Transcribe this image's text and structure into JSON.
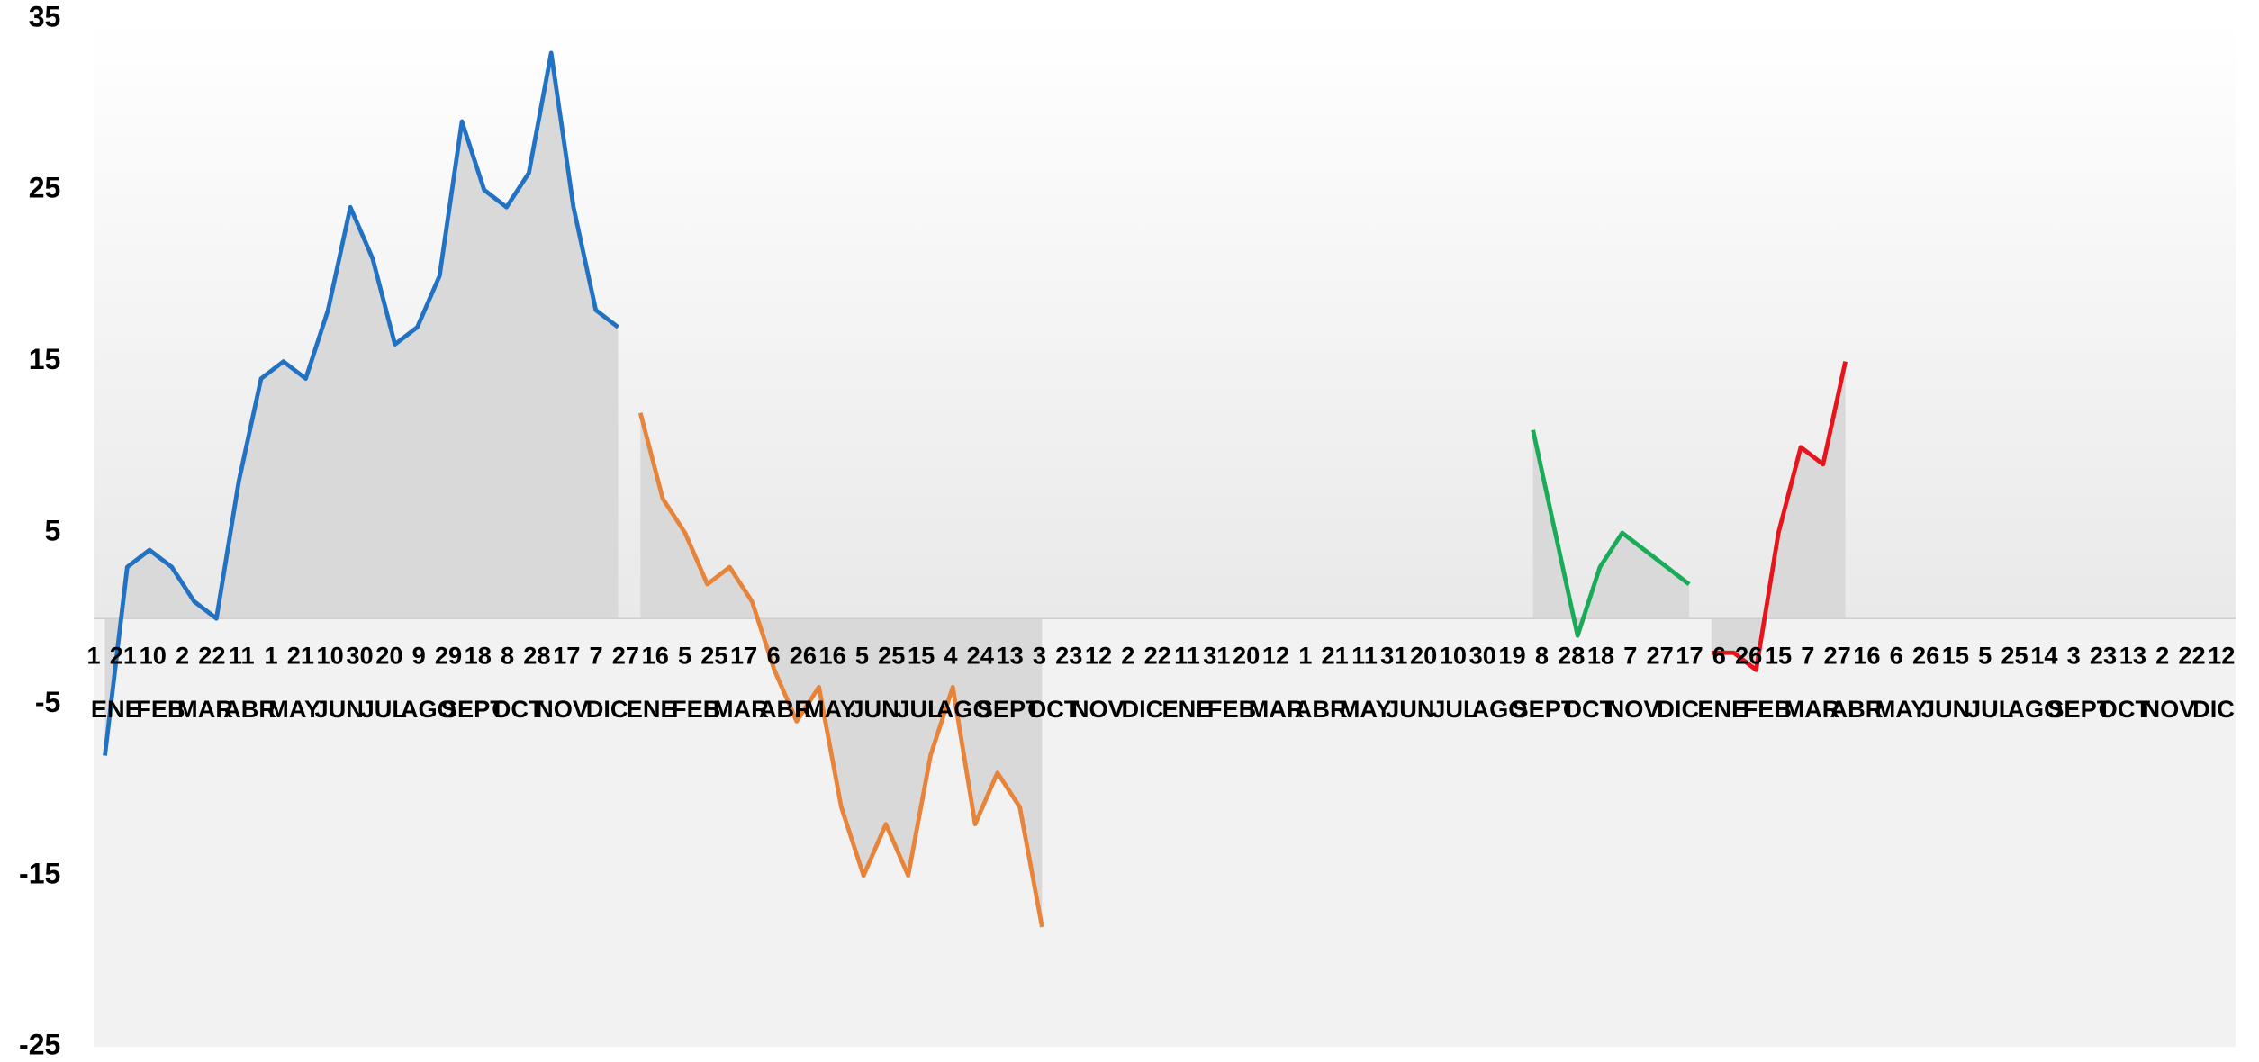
{
  "chart_data": {
    "type": "line",
    "categories": [
      "ENE",
      null,
      "FEB",
      null,
      "MAR",
      null,
      "ABR",
      null,
      "MAY",
      null,
      "JUN",
      null,
      "JUL",
      null,
      "AGO",
      null,
      "SEPT",
      null,
      "OCT",
      null,
      "NOV",
      null,
      "DIC",
      null,
      "ENE",
      null,
      "FEB",
      null,
      "MAR",
      null,
      "ABR",
      null,
      "MAY",
      null,
      "JUN",
      null,
      "JUL",
      null,
      "AGO",
      null,
      "SEPT",
      null,
      "OCT",
      null,
      "NOV",
      null,
      "DIC",
      null,
      "ENE",
      null,
      "FEB",
      null,
      "MAR",
      null,
      "ABR",
      null,
      "MAY",
      null,
      "JUN",
      null,
      "JUL",
      null,
      "AGO",
      null,
      "SEPT",
      null,
      "OCT",
      null,
      "NOV",
      null,
      "DIC",
      null,
      "ENE",
      null,
      "FEB",
      null,
      "MAR",
      null,
      "ABR",
      null,
      "MAY",
      null,
      "JUN",
      null,
      "JUL",
      null,
      "AGO",
      null,
      "SEPT",
      null,
      "OCT",
      null,
      "NOV",
      null,
      "DIC",
      null
    ],
    "day_labels": [
      "1",
      "21",
      "10",
      "2",
      "22",
      "11",
      "1",
      "21",
      "10",
      "30",
      "20",
      "9",
      "29",
      "18",
      "8",
      "28",
      "17",
      "7",
      "27",
      "16",
      "5",
      "25",
      "17",
      "6",
      "26",
      "16",
      "5",
      "25",
      "15",
      "4",
      "24",
      "13",
      "3",
      "23",
      "12",
      "2",
      "22",
      "11",
      "31",
      "20",
      "12",
      "1",
      "21",
      "11",
      "31",
      "20",
      "10",
      "30",
      "19",
      "8",
      "28",
      "18",
      "7",
      "27",
      "17",
      "6",
      "26",
      "15",
      "7",
      "27",
      "16",
      "6",
      "26",
      "15",
      "5",
      "25",
      "14",
      "3",
      "23",
      "13",
      "2",
      "22",
      "12"
    ],
    "series": [
      {
        "color": "#2272c3",
        "values": [
          -8,
          3,
          4,
          3,
          1,
          0,
          8,
          14,
          15,
          14,
          18,
          24,
          21,
          16,
          17,
          20,
          29,
          25,
          24,
          26,
          33,
          24,
          18,
          17,
          null,
          null,
          null,
          null,
          null,
          null,
          null,
          null,
          null,
          null,
          null,
          null,
          null,
          null,
          null,
          null,
          null,
          null,
          null,
          null,
          null,
          null,
          null,
          null,
          null,
          null,
          null,
          null,
          null,
          null,
          null,
          null,
          null,
          null,
          null,
          null,
          null,
          null,
          null,
          null,
          null,
          null,
          null,
          null,
          null,
          null,
          null,
          null,
          null,
          null,
          null,
          null,
          null,
          null,
          null,
          null,
          null,
          null,
          null,
          null,
          null,
          null,
          null,
          null,
          null,
          null,
          null,
          null,
          null,
          null,
          null,
          null
        ]
      },
      {
        "color": "#e8833a",
        "values": [
          null,
          null,
          null,
          null,
          null,
          null,
          null,
          null,
          null,
          null,
          null,
          null,
          null,
          null,
          null,
          null,
          null,
          null,
          null,
          null,
          null,
          null,
          null,
          null,
          12,
          7,
          5,
          2,
          3,
          1,
          -3,
          -6,
          -4,
          -11,
          -15,
          -12,
          -15,
          -8,
          -4,
          -12,
          -9,
          -11,
          -18,
          null,
          null,
          null,
          null,
          null,
          null,
          null,
          null,
          null,
          null,
          null,
          null,
          null,
          null,
          null,
          null,
          null,
          null,
          null,
          null,
          null,
          null,
          null,
          null,
          null,
          null,
          null,
          null,
          null,
          null,
          null,
          null,
          null,
          null,
          null,
          null,
          null,
          null,
          null,
          null,
          null,
          null,
          null,
          null,
          null,
          null,
          null,
          null,
          null,
          null,
          null,
          null,
          null
        ]
      },
      {
        "color": "#1aab58",
        "values": [
          null,
          null,
          null,
          null,
          null,
          null,
          null,
          null,
          null,
          null,
          null,
          null,
          null,
          null,
          null,
          null,
          null,
          null,
          null,
          null,
          null,
          null,
          null,
          null,
          null,
          null,
          null,
          null,
          null,
          null,
          null,
          null,
          null,
          null,
          null,
          null,
          null,
          null,
          null,
          null,
          null,
          null,
          null,
          null,
          null,
          null,
          null,
          null,
          null,
          null,
          null,
          null,
          null,
          null,
          null,
          null,
          null,
          null,
          null,
          null,
          null,
          null,
          null,
          null,
          11,
          5,
          -1,
          3,
          5,
          4,
          3,
          2,
          null,
          null,
          null,
          null,
          null,
          null,
          null,
          null,
          null,
          null,
          null,
          null,
          null,
          null,
          null,
          null,
          null,
          null,
          null,
          null,
          null,
          null,
          null,
          null
        ]
      },
      {
        "color": "#e8141b",
        "values": [
          null,
          null,
          null,
          null,
          null,
          null,
          null,
          null,
          null,
          null,
          null,
          null,
          null,
          null,
          null,
          null,
          null,
          null,
          null,
          null,
          null,
          null,
          null,
          null,
          null,
          null,
          null,
          null,
          null,
          null,
          null,
          null,
          null,
          null,
          null,
          null,
          null,
          null,
          null,
          null,
          null,
          null,
          null,
          null,
          null,
          null,
          null,
          null,
          null,
          null,
          null,
          null,
          null,
          null,
          null,
          null,
          null,
          null,
          null,
          null,
          null,
          null,
          null,
          null,
          null,
          null,
          null,
          null,
          null,
          null,
          null,
          null,
          -2,
          -2,
          -3,
          5,
          10,
          9,
          15,
          null,
          null,
          null,
          null,
          null,
          null,
          null,
          null,
          null,
          null,
          null,
          null,
          null,
          null,
          null,
          null,
          null
        ]
      }
    ],
    "area_color": "#d9d9d9",
    "ylim": [
      -25,
      35
    ],
    "yticks": [
      35,
      25,
      15,
      5,
      -5,
      -15,
      -25
    ]
  }
}
